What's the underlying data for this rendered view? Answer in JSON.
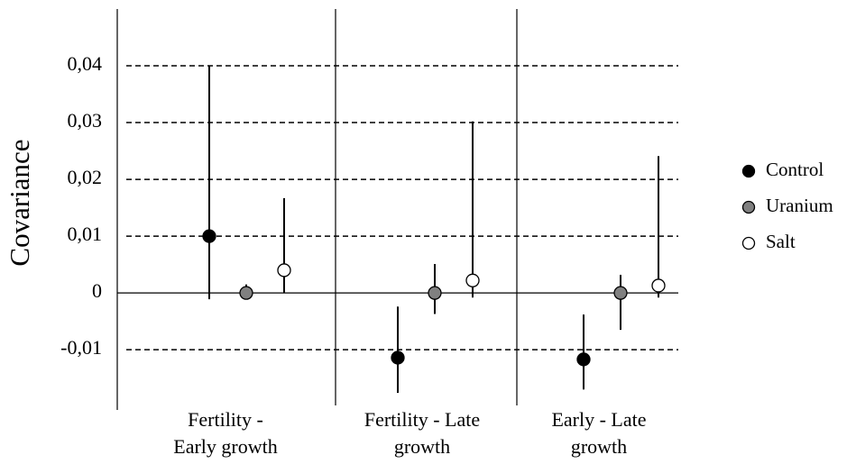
{
  "chart_data": {
    "type": "errorbar",
    "ylabel": "Covariance",
    "categories": [
      [
        "Fertility -",
        "Early growth"
      ],
      [
        "Fertility - Late",
        "growth"
      ],
      [
        "Early - Late",
        "growth"
      ]
    ],
    "series": [
      {
        "name": "Control",
        "color": "#000000",
        "values": [
          0.01,
          -0.0114,
          -0.0117
        ],
        "lower": [
          -0.0011,
          -0.0176,
          -0.017
        ],
        "upper": [
          0.04,
          -0.0024,
          -0.0038
        ]
      },
      {
        "name": "Uranium",
        "color": "#808080",
        "values": [
          0,
          0,
          0
        ],
        "lower": [
          0,
          -0.0037,
          -0.0065
        ],
        "upper": [
          0.0015,
          0.0051,
          0.0032
        ]
      },
      {
        "name": "Salt",
        "color": "#ffffff",
        "values": [
          0.004,
          0.0022,
          0.0013
        ],
        "lower": [
          0,
          -0.0008,
          -0.0008
        ],
        "upper": [
          0.0167,
          0.0302,
          0.0241
        ]
      }
    ],
    "ylim": [
      -0.0206,
      0.05
    ],
    "yticks": [
      {
        "value": -0.01,
        "label": "-0,01"
      },
      0,
      {
        "value": 0.01,
        "label": "0,01"
      },
      {
        "value": 0.02,
        "label": "0,02"
      },
      {
        "value": 0.03,
        "label": "0,03"
      },
      {
        "value": 0.04,
        "label": "0,04"
      }
    ],
    "grid": true,
    "legend": "right"
  }
}
